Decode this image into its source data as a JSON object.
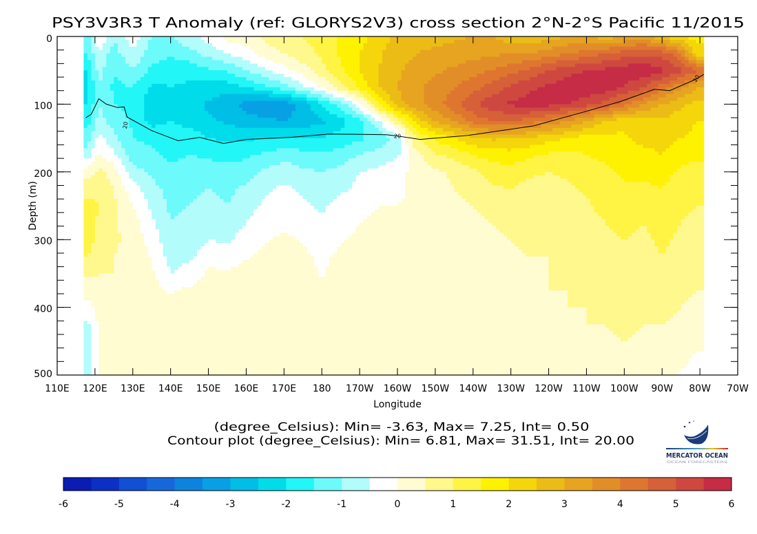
{
  "chart_data": {
    "type": "heatmap",
    "title": "PSY3V3R3 T Anomaly (ref: GLORYS2V3) cross section 2°N-2°S Pacific 11/2015",
    "xlabel": "Longitude",
    "ylabel": "Depth (m)",
    "xlim": [
      110,
      290
    ],
    "ylim": [
      0,
      500
    ],
    "y_inverted": true,
    "x_ticks": [
      110,
      120,
      130,
      140,
      150,
      160,
      170,
      180,
      190,
      200,
      210,
      220,
      230,
      240,
      250,
      260,
      270,
      280,
      290
    ],
    "x_tick_labels": [
      "110E",
      "120E",
      "130E",
      "140E",
      "150E",
      "160E",
      "170E",
      "180",
      "170W",
      "160W",
      "150W",
      "140W",
      "130W",
      "120W",
      "110W",
      "100W",
      "90W",
      "80W",
      "70W"
    ],
    "y_ticks": [
      0,
      100,
      200,
      300,
      400,
      500
    ],
    "y_tick_labels": [
      "0",
      "100",
      "200",
      "300",
      "400",
      "500"
    ],
    "info_line_1": "(degree_Celsius): Min= -3.63, Max= 7.25, Int= 0.50",
    "info_line_2": "Contour plot (degree_Celsius): Min= 6.81, Max= 31.51, Int= 20.00",
    "units": "degree_Celsius",
    "lon": [
      118,
      121,
      125,
      130,
      135,
      140,
      145,
      150,
      155,
      160,
      165,
      170,
      175,
      180,
      185,
      190,
      195,
      200,
      205,
      210,
      215,
      220,
      225,
      230,
      235,
      240,
      245,
      250,
      255,
      260,
      265,
      270,
      275,
      279
    ],
    "depth": [
      0,
      25,
      50,
      75,
      100,
      125,
      150,
      175,
      200,
      225,
      250,
      275,
      300,
      325,
      350,
      375,
      400,
      425,
      450,
      475,
      500
    ],
    "anomaly": [
      [
        -1.2,
        0.2,
        -1.0,
        -0.2,
        -1.0,
        -1.0,
        -0.6,
        -0.3,
        0.2,
        0.3,
        0.6,
        0.8,
        1.0,
        1.2,
        1.6,
        1.8,
        2.2,
        2.6,
        2.7,
        2.8,
        2.9,
        3.0,
        3.0,
        2.7,
        2.6,
        2.8,
        3.0,
        3.1,
        2.7,
        3.0,
        3.3,
        2.5,
        2.0,
        1.8
      ],
      [
        -1.5,
        -0.6,
        -1.2,
        -0.6,
        -1.3,
        -1.4,
        -1.2,
        -0.8,
        -0.5,
        -0.2,
        0.3,
        0.5,
        0.8,
        1.1,
        1.6,
        2.0,
        2.4,
        2.8,
        3.0,
        3.1,
        3.2,
        3.3,
        3.4,
        3.5,
        3.5,
        3.7,
        4.0,
        4.2,
        4.5,
        4.7,
        4.9,
        4.8,
        4.0,
        2.2
      ],
      [
        -2.0,
        -0.8,
        -1.5,
        -1.0,
        -1.6,
        -1.8,
        -1.8,
        -1.6,
        -1.4,
        -1.0,
        -0.6,
        -0.2,
        0.3,
        0.8,
        1.4,
        2.0,
        2.5,
        2.9,
        3.2,
        3.4,
        3.6,
        3.8,
        4.0,
        4.3,
        4.6,
        5.0,
        5.3,
        5.5,
        5.6,
        5.8,
        5.9,
        5.6,
        5.2,
        4.6
      ],
      [
        -2.1,
        -1.0,
        -1.6,
        -1.5,
        -2.1,
        -2.0,
        -2.1,
        -2.2,
        -2.3,
        -2.0,
        -1.6,
        -1.2,
        -0.6,
        0.0,
        0.8,
        1.6,
        2.5,
        3.0,
        3.4,
        3.7,
        4.0,
        4.3,
        4.7,
        5.1,
        5.4,
        5.6,
        5.8,
        5.9,
        5.8,
        5.5,
        5.0,
        4.3,
        3.6,
        3.0
      ],
      [
        -2.0,
        -1.0,
        -1.5,
        -1.6,
        -2.4,
        -2.1,
        -2.3,
        -2.6,
        -2.8,
        -3.2,
        -3.5,
        -3.3,
        -2.8,
        -2.0,
        -1.2,
        -0.2,
        1.5,
        2.8,
        3.3,
        3.8,
        4.3,
        4.9,
        5.3,
        5.6,
        5.7,
        5.7,
        5.5,
        5.2,
        4.8,
        4.2,
        3.5,
        3.0,
        2.6,
        2.4
      ],
      [
        -1.7,
        -0.8,
        -1.2,
        -1.6,
        -2.2,
        -2.0,
        -2.2,
        -2.4,
        -2.6,
        -2.8,
        -2.9,
        -3.0,
        -2.8,
        -2.6,
        -2.2,
        -1.6,
        -0.6,
        0.8,
        2.2,
        3.0,
        3.6,
        4.2,
        4.5,
        4.5,
        4.3,
        3.9,
        3.5,
        3.0,
        2.5,
        2.2,
        2.3,
        2.4,
        2.2,
        2.0
      ],
      [
        -1.3,
        -0.3,
        -0.9,
        -1.5,
        -1.6,
        -1.8,
        -1.7,
        -2.0,
        -2.1,
        -2.1,
        -2.0,
        -2.0,
        -2.0,
        -2.0,
        -1.8,
        -1.6,
        -1.3,
        -0.8,
        1.0,
        1.6,
        2.0,
        2.4,
        2.6,
        2.5,
        2.4,
        2.2,
        2.0,
        1.8,
        1.8,
        1.9,
        2.2,
        2.2,
        2.0,
        1.9
      ],
      [
        -0.8,
        0.1,
        -0.4,
        -1.3,
        -1.4,
        -1.6,
        -1.5,
        -1.6,
        -1.7,
        -1.6,
        -1.4,
        -1.2,
        -1.3,
        -1.4,
        -1.3,
        -1.0,
        -0.8,
        -0.6,
        0.3,
        0.9,
        1.2,
        1.5,
        1.7,
        1.8,
        1.6,
        1.4,
        1.3,
        1.5,
        1.6,
        1.8,
        1.8,
        2.0,
        1.7,
        1.6
      ],
      [
        0.3,
        0.6,
        0.3,
        -0.8,
        -1.1,
        -1.4,
        -1.2,
        -1.2,
        -1.3,
        -1.2,
        -0.9,
        -0.7,
        -0.9,
        -1.0,
        -0.8,
        -0.5,
        -0.4,
        -0.2,
        0.2,
        0.4,
        0.6,
        0.9,
        1.2,
        1.3,
        1.1,
        1.0,
        1.1,
        1.3,
        1.4,
        1.6,
        1.6,
        1.7,
        1.4,
        1.3
      ],
      [
        0.7,
        0.9,
        0.5,
        -0.3,
        -0.8,
        -1.2,
        -1.1,
        -1.0,
        -1.1,
        -0.9,
        -0.6,
        -0.4,
        -0.6,
        -0.8,
        -0.6,
        -0.4,
        -0.2,
        -0.1,
        0.1,
        0.3,
        0.5,
        0.7,
        0.9,
        1.0,
        0.8,
        0.8,
        0.9,
        1.1,
        1.3,
        1.4,
        1.4,
        1.5,
        1.2,
        1.1
      ],
      [
        1.2,
        1.0,
        0.6,
        0.0,
        -0.6,
        -1.1,
        -1.0,
        -0.8,
        -1.0,
        -0.7,
        -0.4,
        -0.2,
        -0.4,
        -0.6,
        -0.3,
        -0.2,
        0.0,
        0.0,
        0.1,
        0.3,
        0.4,
        0.5,
        0.6,
        0.7,
        0.7,
        0.7,
        0.8,
        0.9,
        1.2,
        1.3,
        1.2,
        1.4,
        1.1,
        1.0
      ],
      [
        1.4,
        0.9,
        0.6,
        0.2,
        -0.4,
        -1.0,
        -0.9,
        -0.6,
        -0.8,
        -0.5,
        -0.2,
        -0.1,
        -0.2,
        -0.4,
        -0.2,
        0.0,
        0.1,
        0.1,
        0.2,
        0.3,
        0.3,
        0.4,
        0.5,
        0.6,
        0.6,
        0.6,
        0.7,
        0.8,
        1.0,
        1.1,
        1.0,
        1.2,
        1.0,
        0.9
      ],
      [
        1.3,
        0.8,
        0.6,
        0.3,
        -0.2,
        -0.9,
        -0.8,
        -0.5,
        -0.6,
        -0.2,
        -0.05,
        0.1,
        -0.05,
        -0.2,
        -0.05,
        0.1,
        0.2,
        0.1,
        0.2,
        0.3,
        0.3,
        0.4,
        0.4,
        0.5,
        0.6,
        0.6,
        0.6,
        0.7,
        0.9,
        1.0,
        0.9,
        1.1,
        0.9,
        0.8
      ],
      [
        1.0,
        0.6,
        0.5,
        0.4,
        -0.05,
        -0.7,
        -0.6,
        -0.2,
        -0.3,
        -0.05,
        0.1,
        0.2,
        0.1,
        -0.1,
        0.1,
        0.2,
        0.2,
        0.1,
        0.2,
        0.3,
        0.3,
        0.3,
        0.4,
        0.4,
        0.5,
        0.5,
        0.6,
        0.7,
        0.9,
        1.0,
        0.8,
        1.0,
        0.8,
        0.7
      ],
      [
        0.6,
        0.5,
        0.5,
        0.4,
        0.1,
        -0.5,
        -0.3,
        0.1,
        0.1,
        0.2,
        0.2,
        0.3,
        0.2,
        -0.05,
        0.2,
        0.2,
        0.3,
        0.1,
        0.2,
        0.3,
        0.3,
        0.3,
        0.3,
        0.4,
        0.4,
        0.5,
        0.6,
        0.7,
        0.8,
        0.9,
        0.8,
        0.9,
        0.7,
        0.6
      ],
      [
        0.2,
        0.4,
        0.4,
        0.4,
        0.2,
        -0.05,
        0.1,
        0.2,
        0.2,
        0.2,
        0.2,
        0.3,
        0.2,
        0.1,
        0.2,
        0.2,
        0.3,
        0.1,
        0.2,
        0.3,
        0.3,
        0.3,
        0.3,
        0.4,
        0.4,
        0.5,
        0.5,
        0.6,
        0.7,
        0.9,
        0.7,
        0.8,
        0.6,
        0.5
      ],
      [
        -0.2,
        0.2,
        0.3,
        0.4,
        0.3,
        0.2,
        0.2,
        0.2,
        0.2,
        0.3,
        0.2,
        0.2,
        0.2,
        0.2,
        0.2,
        0.2,
        0.3,
        0.1,
        0.2,
        0.3,
        0.3,
        0.3,
        0.3,
        0.4,
        0.4,
        0.4,
        0.5,
        0.5,
        0.6,
        0.8,
        0.6,
        0.7,
        0.5,
        0.4
      ],
      [
        -0.6,
        0.1,
        0.3,
        0.3,
        0.3,
        0.2,
        0.2,
        0.2,
        0.2,
        0.2,
        0.2,
        0.2,
        0.2,
        0.2,
        0.2,
        0.2,
        0.2,
        0.1,
        0.2,
        0.3,
        0.3,
        0.3,
        0.3,
        0.3,
        0.3,
        0.4,
        0.4,
        0.5,
        0.5,
        0.6,
        0.5,
        0.5,
        0.3,
        0.2
      ],
      [
        -0.8,
        0.0,
        0.3,
        0.3,
        0.2,
        0.2,
        0.2,
        0.2,
        0.1,
        0.2,
        0.2,
        0.2,
        0.2,
        0.1,
        0.2,
        0.2,
        0.2,
        0.1,
        0.2,
        0.2,
        0.2,
        0.3,
        0.3,
        0.3,
        0.3,
        0.3,
        0.4,
        0.4,
        0.4,
        0.5,
        0.4,
        0.3,
        0.2,
        0.1
      ],
      [
        -0.9,
        0.0,
        0.3,
        0.3,
        0.2,
        0.2,
        0.2,
        0.2,
        0.1,
        0.2,
        0.2,
        0.2,
        0.2,
        0.1,
        0.2,
        0.2,
        0.2,
        0.1,
        0.2,
        0.2,
        0.2,
        0.3,
        0.3,
        0.3,
        0.3,
        0.3,
        0.4,
        0.4,
        0.4,
        0.5,
        0.4,
        0.2,
        0.1,
        -0.05
      ],
      [
        -0.9,
        0.0,
        0.3,
        0.3,
        0.2,
        0.2,
        0.2,
        0.2,
        0.1,
        0.2,
        0.2,
        0.2,
        0.2,
        0.1,
        0.2,
        0.2,
        0.2,
        0.1,
        0.2,
        0.2,
        0.2,
        0.2,
        0.3,
        0.3,
        0.3,
        0.3,
        0.3,
        0.3,
        0.3,
        0.4,
        0.3,
        0.1,
        -0.05,
        -0.1
      ]
    ],
    "contour": {
      "level": 20,
      "label": "20",
      "lon": [
        117.6,
        119,
        121,
        123,
        126,
        127.7,
        128.5,
        135,
        142,
        147.7,
        154,
        160,
        171.6,
        182,
        197,
        200,
        206,
        218.7,
        236,
        249,
        259,
        268,
        272,
        279,
        281
      ],
      "depth": [
        120,
        115,
        92,
        100,
        105,
        104,
        119,
        139,
        154,
        149,
        158,
        152,
        149,
        144,
        145,
        147,
        152,
        146,
        132,
        112,
        96,
        78,
        80,
        63,
        56
      ]
    },
    "colorbar": {
      "levels": [
        -6,
        -5.5,
        -5,
        -4.5,
        -4,
        -3.5,
        -3,
        -2.5,
        -2,
        -1.5,
        -1,
        -0.5,
        0,
        0.5,
        1,
        1.5,
        2,
        2.5,
        3,
        3.5,
        4,
        4.5,
        5,
        5.5,
        6
      ],
      "colors": [
        "#0a1cb2",
        "#0b30c4",
        "#1150d4",
        "#1668da",
        "#0c84de",
        "#08a0e4",
        "#00bee6",
        "#00dcea",
        "#22f6f6",
        "#6cfafa",
        "#b2fcfc",
        "#ffffff",
        "#fffcd2",
        "#fff88c",
        "#fff444",
        "#fff200",
        "#f4d60a",
        "#ecbc16",
        "#e6a420",
        "#e28e28",
        "#de7630",
        "#d66038",
        "#ce4840",
        "#c62c46"
      ],
      "tick_values": [
        -6,
        -5,
        -4,
        -3,
        -2,
        -1,
        0,
        1,
        2,
        3,
        4,
        5,
        6
      ],
      "tick_labels": [
        "-6",
        "-5",
        "-4",
        "-3",
        "-2",
        "-1",
        "0",
        "1",
        "2",
        "3",
        "4",
        "5",
        "6"
      ]
    }
  },
  "logo": {
    "name": "MERCATOR OCEAN",
    "tagline": "OCEAN FORECASTERS"
  }
}
